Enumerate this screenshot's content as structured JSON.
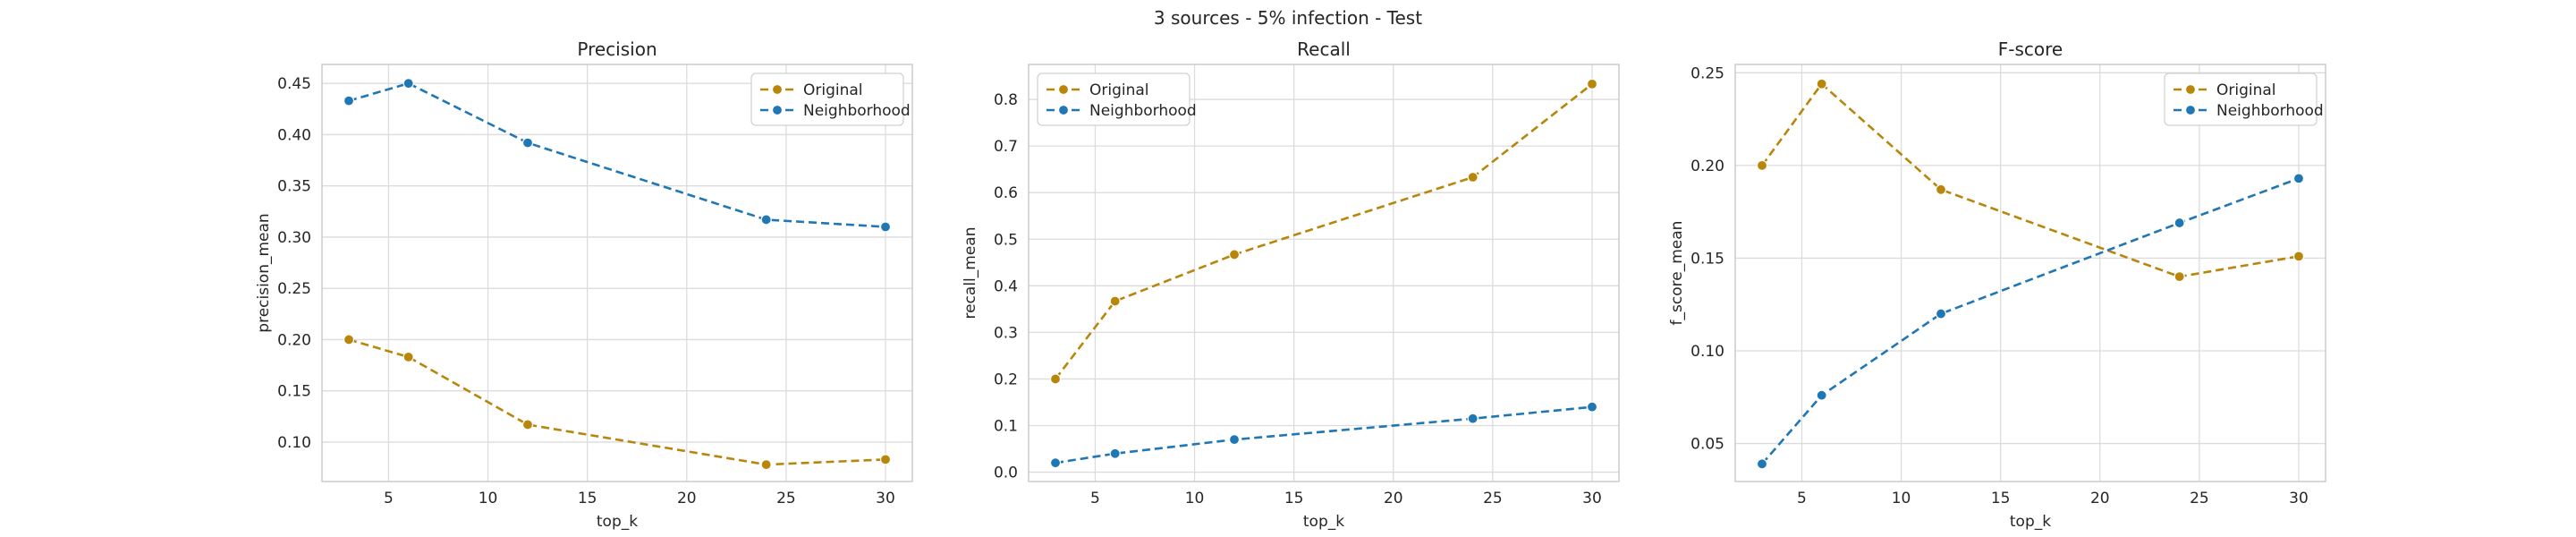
{
  "suptitle": "3 sources - 5% infection - Test",
  "colors": {
    "original": "#b8860b",
    "neighborhood": "#1f77b4",
    "grid": "#dcdcdc",
    "frame": "#cccccc"
  },
  "chart_data": [
    {
      "type": "line",
      "title": "Precision",
      "xlabel": "top_k",
      "ylabel": "precision_mean",
      "x": [
        3,
        6,
        12,
        24,
        30
      ],
      "xlim": [
        1.65,
        31.35
      ],
      "xticks": [
        5,
        10,
        15,
        20,
        25,
        30
      ],
      "ylim": [
        0.0615,
        0.4685
      ],
      "yticks": [
        0.1,
        0.15,
        0.2,
        0.25,
        0.3,
        0.35,
        0.4,
        0.45
      ],
      "ytick_labels": [
        "0.10",
        "0.15",
        "0.20",
        "0.25",
        "0.30",
        "0.35",
        "0.40",
        "0.45"
      ],
      "grid": true,
      "legend": "upper-right",
      "series": [
        {
          "name": "Original",
          "color": "#b8860b",
          "values": [
            0.2,
            0.183,
            0.117,
            0.078,
            0.083
          ]
        },
        {
          "name": "Neighborhood",
          "color": "#1f77b4",
          "values": [
            0.433,
            0.45,
            0.392,
            0.317,
            0.31
          ]
        }
      ]
    },
    {
      "type": "line",
      "title": "Recall",
      "xlabel": "top_k",
      "ylabel": "recall_mean",
      "x": [
        3,
        6,
        12,
        24,
        30
      ],
      "xlim": [
        1.65,
        31.35
      ],
      "xticks": [
        5,
        10,
        15,
        20,
        25,
        30
      ],
      "ylim": [
        -0.02,
        0.875
      ],
      "yticks": [
        0.0,
        0.1,
        0.2,
        0.3,
        0.4,
        0.5,
        0.6,
        0.7,
        0.8
      ],
      "ytick_labels": [
        "0.0",
        "0.1",
        "0.2",
        "0.3",
        "0.4",
        "0.5",
        "0.6",
        "0.7",
        "0.8"
      ],
      "grid": true,
      "legend": "upper-left",
      "series": [
        {
          "name": "Original",
          "color": "#b8860b",
          "values": [
            0.2,
            0.367,
            0.467,
            0.633,
            0.833
          ]
        },
        {
          "name": "Neighborhood",
          "color": "#1f77b4",
          "values": [
            0.02,
            0.04,
            0.07,
            0.115,
            0.14
          ]
        }
      ]
    },
    {
      "type": "line",
      "title": "F-score",
      "xlabel": "top_k",
      "ylabel": "f_score_mean",
      "x": [
        3,
        6,
        12,
        24,
        30
      ],
      "xlim": [
        1.65,
        31.35
      ],
      "xticks": [
        5,
        10,
        15,
        20,
        25,
        30
      ],
      "ylim": [
        0.0295,
        0.2545
      ],
      "yticks": [
        0.05,
        0.1,
        0.15,
        0.2,
        0.25
      ],
      "ytick_labels": [
        "0.05",
        "0.10",
        "0.15",
        "0.20",
        "0.25"
      ],
      "grid": true,
      "legend": "upper-right",
      "series": [
        {
          "name": "Original",
          "color": "#b8860b",
          "values": [
            0.2,
            0.244,
            0.187,
            0.14,
            0.151
          ]
        },
        {
          "name": "Neighborhood",
          "color": "#1f77b4",
          "values": [
            0.039,
            0.076,
            0.12,
            0.169,
            0.193
          ]
        }
      ]
    }
  ]
}
